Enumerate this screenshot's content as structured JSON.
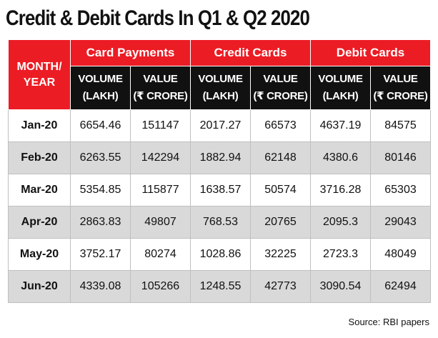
{
  "title": "Credit & Debit Cards In Q1 & Q2 2020",
  "source": "Source: RBI papers",
  "colors": {
    "header_red": "#ec1c24",
    "subheader_black": "#111111",
    "stripe_gray": "#d9d9d9"
  },
  "chart_data": {
    "type": "table",
    "title": "Credit & Debit Cards In Q1 & Q2 2020",
    "row_header": [
      "MONTH/",
      "YEAR"
    ],
    "groups": [
      "Card Payments",
      "Credit Cards",
      "Debit Cards"
    ],
    "subheaders": [
      {
        "line1": "VOLUME",
        "line2": "(LAKH)"
      },
      {
        "line1": "VALUE",
        "line2": "(₹ CRORE)"
      },
      {
        "line1": "VOLUME",
        "line2": "(LAKH)"
      },
      {
        "line1": "VALUE",
        "line2": "(₹ CRORE)"
      },
      {
        "line1": "VOLUME",
        "line2": "(LAKH)"
      },
      {
        "line1": "VALUE",
        "line2": "(₹ CRORE)"
      }
    ],
    "rows": [
      {
        "month": "Jan-20",
        "values": [
          "6654.46",
          "151147",
          "2017.27",
          "66573",
          "4637.19",
          "84575"
        ]
      },
      {
        "month": "Feb-20",
        "values": [
          "6263.55",
          "142294",
          "1882.94",
          "62148",
          "4380.6",
          "80146"
        ]
      },
      {
        "month": "Mar-20",
        "values": [
          "5354.85",
          "115877",
          "1638.57",
          "50574",
          "3716.28",
          "65303"
        ]
      },
      {
        "month": "Apr-20",
        "values": [
          "2863.83",
          "49807",
          "768.53",
          "20765",
          "2095.3",
          "29043"
        ]
      },
      {
        "month": "May-20",
        "values": [
          "3752.17",
          "80274",
          "1028.86",
          "32225",
          "2723.3",
          "48049"
        ]
      },
      {
        "month": "Jun-20",
        "values": [
          "4339.08",
          "105266",
          "1248.55",
          "42773",
          "3090.54",
          "62494"
        ]
      }
    ]
  }
}
